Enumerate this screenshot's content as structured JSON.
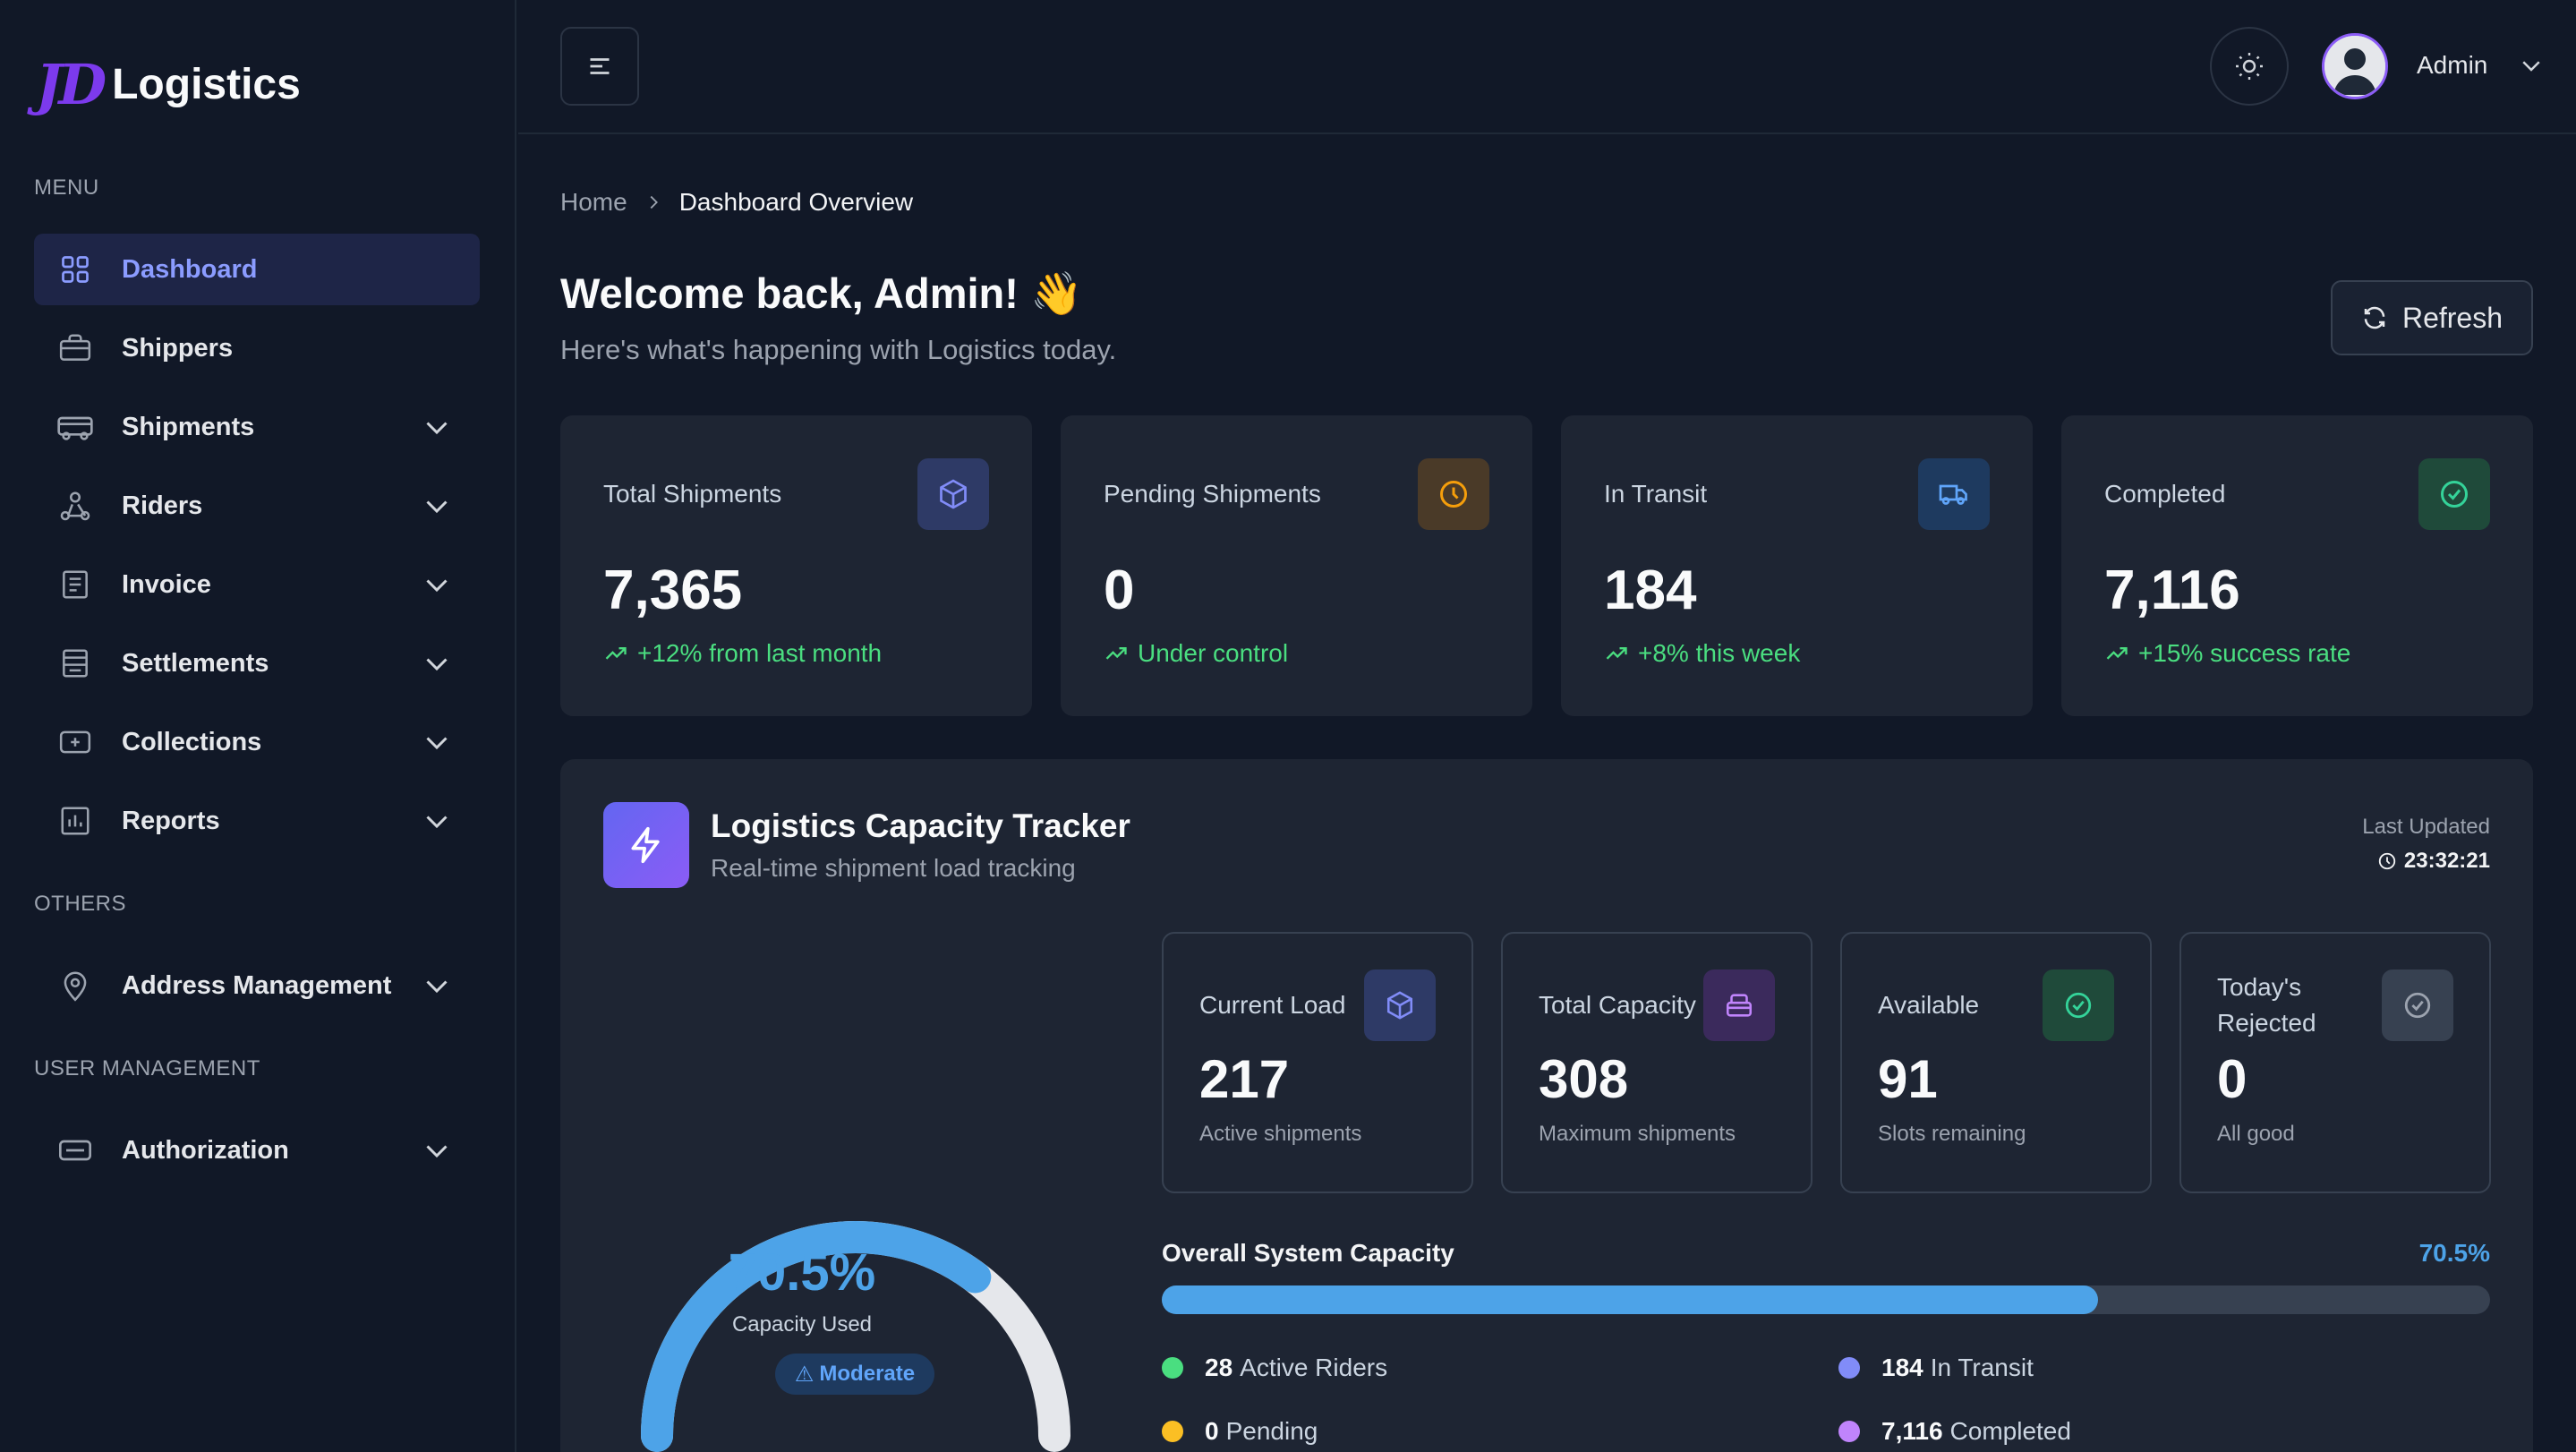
{
  "brand": {
    "mark": "JD",
    "name": "Logistics"
  },
  "sidebar": {
    "sections": {
      "menu": "MENU",
      "others": "OTHERS",
      "user_management": "USER MANAGEMENT"
    },
    "items": [
      {
        "label": "Dashboard",
        "icon": "grid-icon",
        "active": true
      },
      {
        "label": "Shippers",
        "icon": "briefcase-icon"
      },
      {
        "label": "Shipments",
        "icon": "truck-icon"
      },
      {
        "label": "Riders",
        "icon": "rider-icon"
      },
      {
        "label": "Invoice",
        "icon": "document-icon"
      },
      {
        "label": "Settlements",
        "icon": "receipt-icon"
      },
      {
        "label": "Collections",
        "icon": "wallet-icon"
      },
      {
        "label": "Reports",
        "icon": "bar-chart-icon"
      },
      {
        "label": "Address Management",
        "icon": "map-pin-icon"
      },
      {
        "label": "Authorization",
        "icon": "card-icon"
      }
    ]
  },
  "topbar": {
    "user_name": "Admin"
  },
  "breadcrumb": {
    "home": "Home",
    "current": "Dashboard Overview"
  },
  "welcome": {
    "title": "Welcome back, Admin! 👋",
    "subtitle": "Here's what's happening with Logistics today."
  },
  "refresh_label": "Refresh",
  "stats": [
    {
      "title": "Total Shipments",
      "value": "7,365",
      "trend": "+12% from last month",
      "icon": "box-icon",
      "icon_bg": "#2e3a66",
      "icon_color": "#818cf8"
    },
    {
      "title": "Pending Shipments",
      "value": "0",
      "trend": "Under control",
      "icon": "clock-icon",
      "icon_bg": "#4a3a28",
      "icon_color": "#f59e0b"
    },
    {
      "title": "In Transit",
      "value": "184",
      "trend": "+8% this week",
      "icon": "truck-icon",
      "icon_bg": "#1e3a5f",
      "icon_color": "#60a5fa"
    },
    {
      "title": "Completed",
      "value": "7,116",
      "trend": "+15% success rate",
      "icon": "check-circle-icon",
      "icon_bg": "#1f4a3a",
      "icon_color": "#34d399"
    }
  ],
  "tracker": {
    "title": "Logistics Capacity Tracker",
    "subtitle": "Real-time shipment load tracking",
    "last_updated_label": "Last Updated",
    "last_updated_time": "23:32:21",
    "gauge": {
      "percent": 70.5,
      "percent_label": "70.5%",
      "label": "Capacity Used",
      "badge": "Moderate"
    },
    "cards": [
      {
        "title": "Current Load",
        "value": "217",
        "sub": "Active shipments",
        "icon": "box-icon",
        "icon_bg": "#2e3a66",
        "icon_color": "#818cf8"
      },
      {
        "title": "Total Capacity",
        "value": "308",
        "sub": "Maximum shipments",
        "icon": "inbox-icon",
        "icon_bg": "#3b2a5c",
        "icon_color": "#c084fc"
      },
      {
        "title": "Available",
        "value": "91",
        "sub": "Slots remaining",
        "icon": "check-circle-icon",
        "icon_bg": "#1f4a3a",
        "icon_color": "#34d399"
      },
      {
        "title": "Today's Rejected",
        "value": "0",
        "sub": "All good",
        "icon": "check-circle-icon",
        "icon_bg": "#374151",
        "icon_color": "#9ca3af"
      }
    ],
    "overall": {
      "title": "Overall System Capacity",
      "percent": 70.5,
      "percent_label": "70.5%"
    },
    "legend": [
      {
        "num": "28",
        "label": "Active Riders",
        "color": "#4ade80"
      },
      {
        "num": "184",
        "label": "In Transit",
        "color": "#818cf8"
      },
      {
        "num": "0",
        "label": "Pending",
        "color": "#fbbf24"
      },
      {
        "num": "7,116",
        "label": "Completed",
        "color": "#c084fc"
      }
    ]
  },
  "colors": {
    "accent": "#8b9cff",
    "gauge": "#4da3e8",
    "success": "#4ade80"
  }
}
